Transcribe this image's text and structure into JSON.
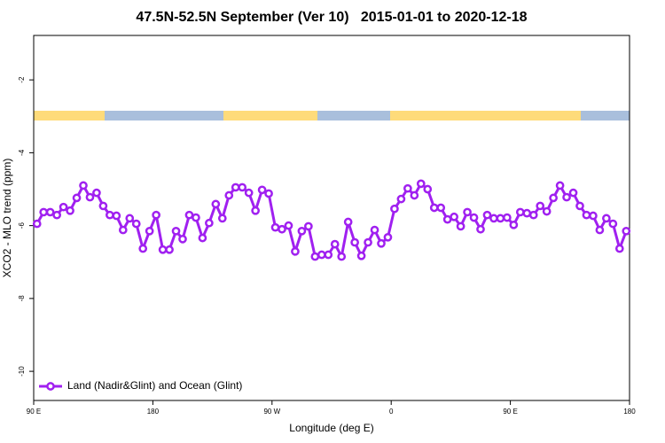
{
  "chart_data": {
    "type": "line",
    "title": "47.5N-52.5N September (Ver 10)   2015-01-01 to 2020-12-18",
    "x_label": "Longitude (deg E)",
    "y_label": "XCO2 - MLO trend (ppm)",
    "xlim": [
      90,
      540
    ],
    "xticks": [
      {
        "value": 90,
        "label": "90 E"
      },
      180,
      {
        "value": 270,
        "label": "90 W"
      },
      {
        "value": 360,
        "label": "0"
      },
      {
        "value": 450,
        "label": "90 E"
      },
      {
        "value": 540,
        "label": "180"
      }
    ],
    "ylim": [
      -10.8,
      -0.78
    ],
    "yticks": [
      -10,
      -8,
      -6,
      -4,
      -2
    ],
    "legend": "bottom-left",
    "x": [
      92.5,
      97.5,
      102.5,
      107.5,
      112.5,
      117.5,
      122.5,
      127.5,
      132.5,
      137.5,
      142.5,
      147.5,
      152.5,
      157.5,
      162.5,
      167.5,
      172.5,
      177.5,
      182.5,
      187.5,
      192.5,
      197.5,
      202.5,
      207.5,
      212.5,
      217.5,
      222.5,
      227.5,
      232.5,
      237.5,
      242.5,
      247.5,
      252.5,
      257.5,
      262.5,
      267.5,
      272.5,
      277.5,
      282.5,
      287.5,
      292.5,
      297.5,
      302.5,
      307.5,
      312.5,
      317.5,
      322.5,
      327.5,
      332.5,
      337.5,
      342.5,
      347.5,
      352.5,
      357.5,
      362.5,
      367.5,
      372.5,
      377.5,
      382.5,
      387.5,
      392.5,
      397.5,
      402.5,
      407.5,
      412.5,
      417.5,
      422.5,
      427.5,
      432.5,
      437.5,
      442.5,
      447.5,
      452.5,
      457.5,
      462.5,
      467.5,
      472.5,
      477.5,
      482.5,
      487.5,
      492.5,
      497.5,
      502.5,
      507.5,
      512.5,
      517.5,
      522.5,
      527.5,
      532.5,
      537.5
    ],
    "series": [
      {
        "name": "Land (Nadir&Glint) and Ocean (Glint)",
        "color": "#a020f0",
        "values": [
          -5.95,
          -5.63,
          -5.63,
          -5.71,
          -5.49,
          -5.59,
          -5.24,
          -4.9,
          -5.22,
          -5.1,
          -5.46,
          -5.71,
          -5.73,
          -6.12,
          -5.8,
          -5.95,
          -6.63,
          -6.15,
          -5.71,
          -6.66,
          -6.66,
          -6.15,
          -6.37,
          -5.71,
          -5.78,
          -6.34,
          -5.93,
          -5.41,
          -5.8,
          -5.17,
          -4.95,
          -4.95,
          -5.1,
          -5.59,
          -5.02,
          -5.12,
          -6.05,
          -6.1,
          -6.0,
          -6.71,
          -6.15,
          -6.02,
          -6.85,
          -6.8,
          -6.8,
          -6.51,
          -6.85,
          -5.9,
          -6.46,
          -6.83,
          -6.46,
          -6.12,
          -6.49,
          -6.32,
          -5.54,
          -5.27,
          -4.98,
          -5.17,
          -4.85,
          -5.0,
          -5.51,
          -5.51,
          -5.83,
          -5.76,
          -6.02,
          -5.63,
          -5.78,
          -6.1,
          -5.71,
          -5.8,
          -5.8,
          -5.78,
          -5.98,
          -5.63,
          -5.66,
          -5.71,
          -5.46,
          -5.61,
          -5.24,
          -4.9,
          -5.22,
          -5.1,
          -5.46,
          -5.71,
          -5.73,
          -6.12,
          -5.8,
          -5.95,
          -6.63,
          -6.15
        ]
      }
    ]
  }
}
